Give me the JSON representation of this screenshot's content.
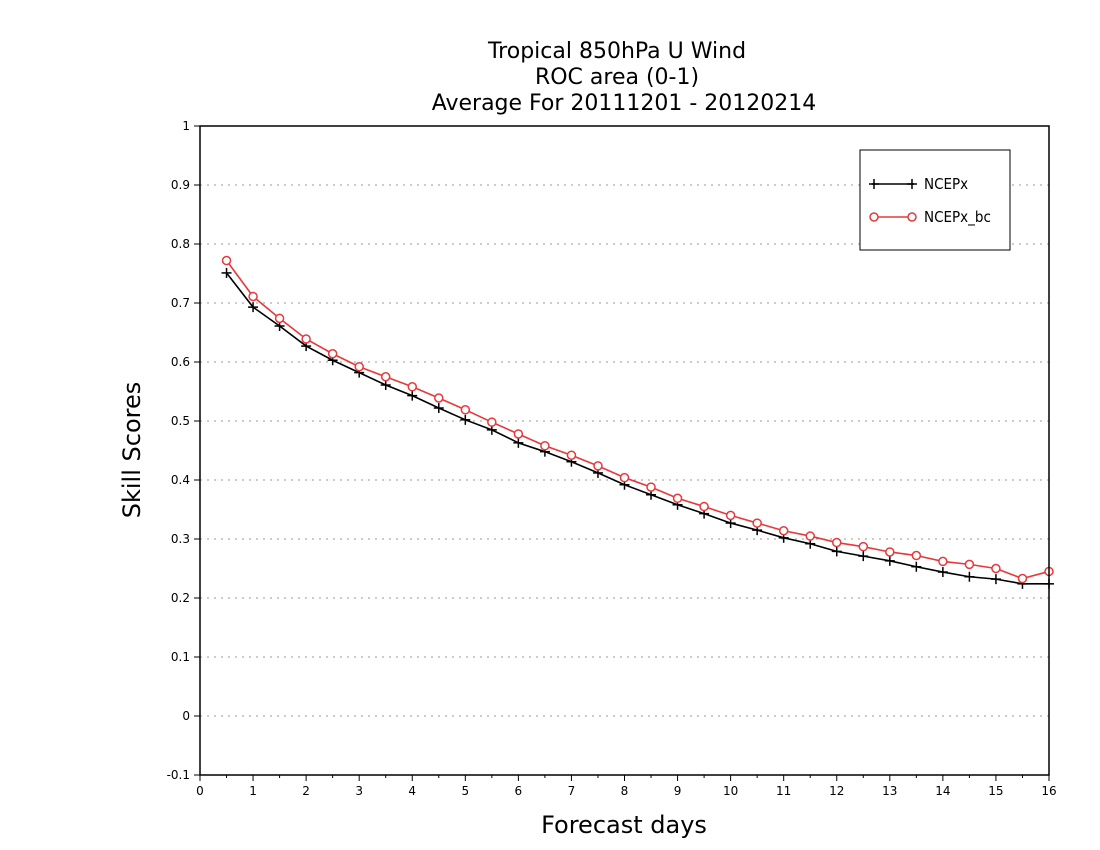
{
  "chart_data": {
    "type": "line",
    "title_lines": [
      "Tropical 850hPa U Wind",
      "ROC area (0-1)",
      "Average For 20111201 - 20120214"
    ],
    "xlabel": "Forecast days",
    "ylabel": "Skill Scores",
    "xlim": [
      0,
      16
    ],
    "ylim": [
      -0.1,
      1
    ],
    "x_ticks": [
      "0",
      "1",
      "2",
      "3",
      "4",
      "5",
      "6",
      "7",
      "8",
      "9",
      "10",
      "11",
      "12",
      "13",
      "14",
      "15",
      "16"
    ],
    "y_ticks": [
      "-0.1",
      "0",
      "0.1",
      "0.2",
      "0.3",
      "0.4",
      "0.5",
      "0.6",
      "0.7",
      "0.8",
      "0.9",
      "1"
    ],
    "grid": true,
    "legend_position": "top-right",
    "x": [
      0.5,
      1,
      1.5,
      2,
      2.5,
      3,
      3.5,
      4,
      4.5,
      5,
      5.5,
      6,
      6.5,
      7,
      7.5,
      8,
      8.5,
      9,
      9.5,
      10,
      10.5,
      11,
      11.5,
      12,
      12.5,
      13,
      13.5,
      14,
      14.5,
      15,
      15.5,
      16
    ],
    "series": [
      {
        "name": "NCEPx",
        "color": "#000000",
        "marker": "plus",
        "values": [
          0.751,
          0.693,
          0.661,
          0.627,
          0.603,
          0.582,
          0.561,
          0.543,
          0.522,
          0.502,
          0.485,
          0.463,
          0.448,
          0.431,
          0.412,
          0.392,
          0.375,
          0.358,
          0.343,
          0.327,
          0.315,
          0.302,
          0.292,
          0.279,
          0.271,
          0.263,
          0.253,
          0.244,
          0.236,
          0.232,
          0.224,
          0.224
        ]
      },
      {
        "name": "NCEPx_bc",
        "color": "#e8383a",
        "marker": "circle",
        "values": [
          0.772,
          0.711,
          0.674,
          0.639,
          0.614,
          0.592,
          0.575,
          0.558,
          0.539,
          0.519,
          0.498,
          0.478,
          0.458,
          0.442,
          0.424,
          0.404,
          0.388,
          0.369,
          0.355,
          0.34,
          0.327,
          0.314,
          0.305,
          0.294,
          0.287,
          0.278,
          0.272,
          0.262,
          0.257,
          0.25,
          0.233,
          0.245
        ]
      }
    ]
  }
}
